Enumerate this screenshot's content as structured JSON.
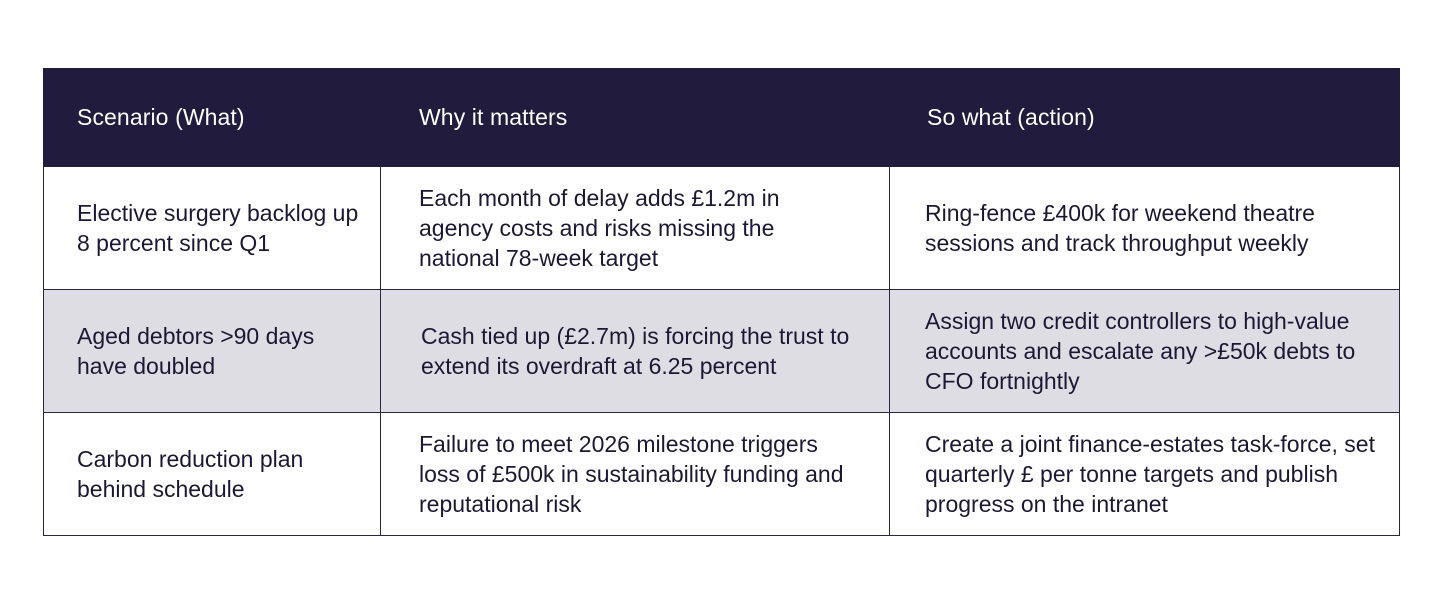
{
  "table": {
    "headers": [
      "Scenario (What)",
      "Why it matters",
      "So what (action)"
    ],
    "rows": [
      {
        "scenario": "Elective surgery backlog up 8 percent since Q1",
        "why": "Each month of delay adds £1.2m in agency costs and risks missing the national 78-week target",
        "action": "Ring-fence £400k for weekend theatre sessions and track throughput weekly"
      },
      {
        "scenario": "Aged debtors >90 days have doubled",
        "why": "Cash tied up (£2.7m) is forcing the trust to extend its overdraft at 6.25 percent",
        "action": "Assign two credit controllers to high-value accounts and escalate any >£50k debts to CFO fortnightly"
      },
      {
        "scenario": "Carbon reduction plan behind schedule",
        "why": "Failure to meet 2026 milestone triggers loss of £500k in sustainability funding and reputational risk",
        "action": "Create a joint finance-estates task-force, set quarterly £ per tonne targets and publish progress on the intranet"
      }
    ]
  }
}
